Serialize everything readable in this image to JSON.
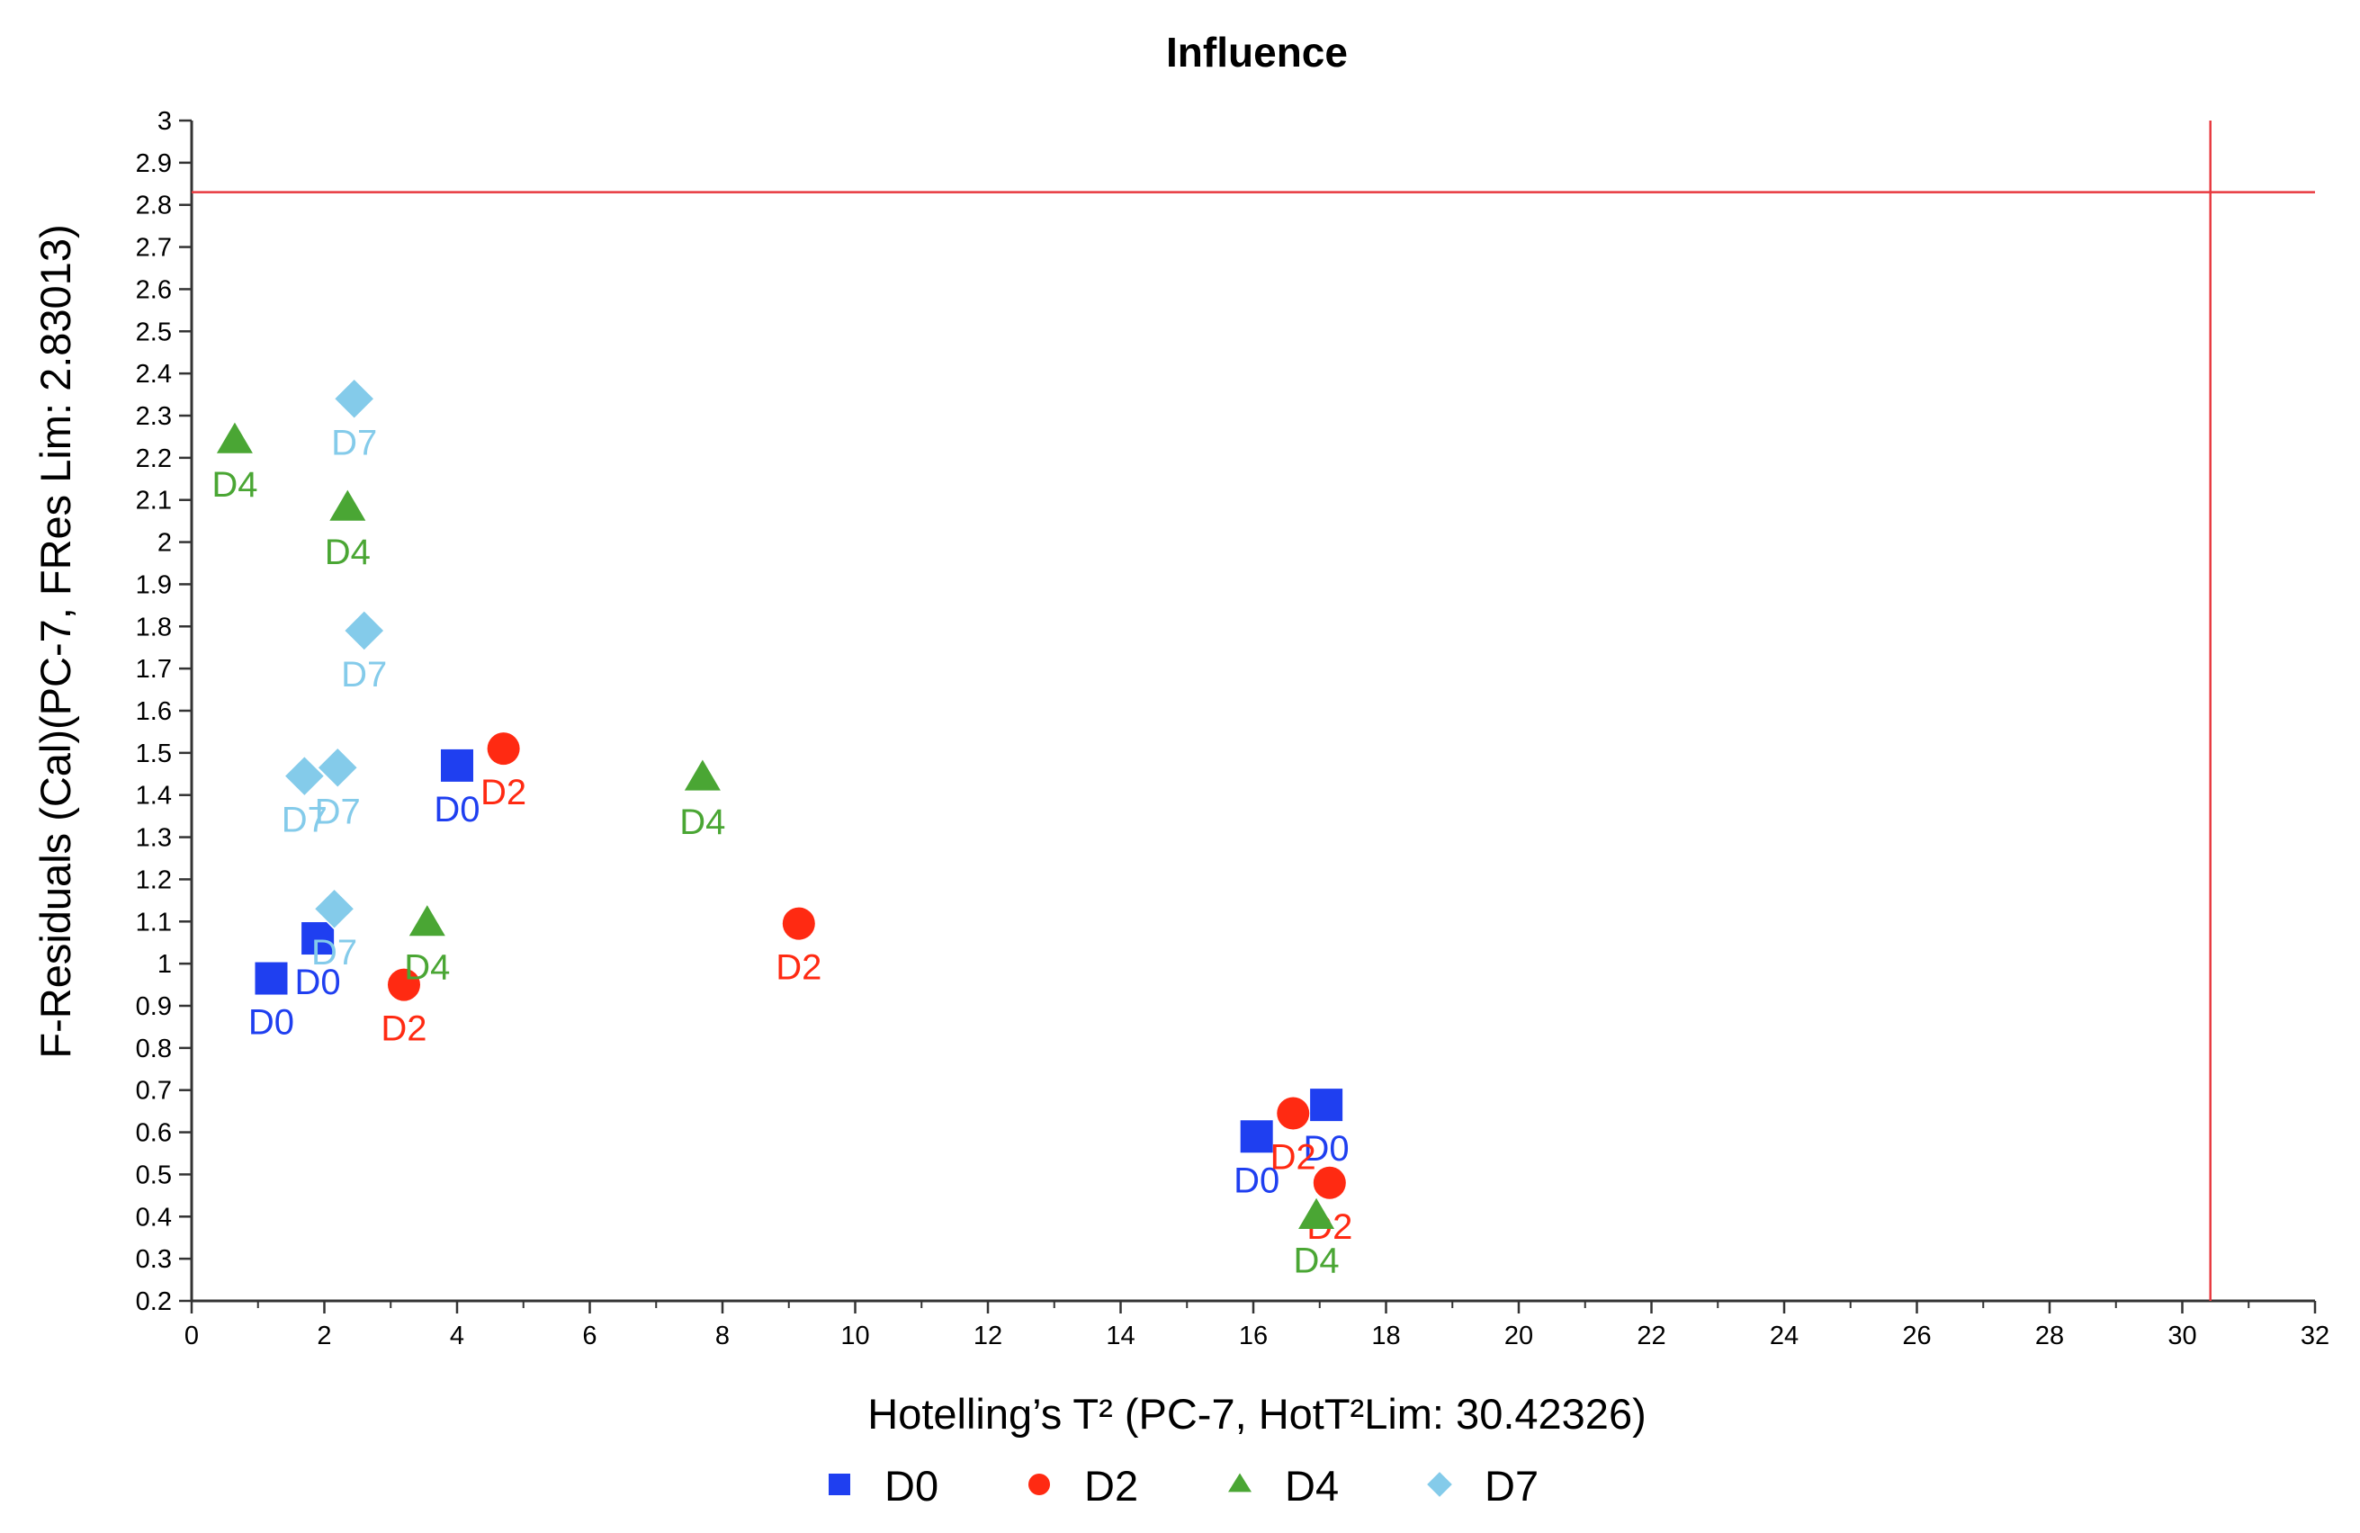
{
  "chart_data": {
    "type": "scatter",
    "title": "Influence",
    "xlabel": "Hotelling’s T² (PC-7, HotT²Lim: 30.42326)",
    "ylabel": "F-Residuals (Cal)(PC-7, FRes Lim: 2.83013)",
    "xlim": [
      0,
      32
    ],
    "ylim": [
      0.2,
      3
    ],
    "x_ticks": [
      0,
      2,
      4,
      6,
      8,
      10,
      12,
      14,
      16,
      18,
      20,
      22,
      24,
      26,
      28,
      30,
      32
    ],
    "y_ticks": [
      "0.2",
      "0.3",
      "0.4",
      "0.5",
      "0.6",
      "0.7",
      "0.8",
      "0.9",
      "1",
      "1.1",
      "1.2",
      "1.3",
      "1.4",
      "1.5",
      "1.6",
      "1.7",
      "1.8",
      "1.9",
      "2",
      "2.1",
      "2.2",
      "2.3",
      "2.4",
      "2.5",
      "2.6",
      "2.7",
      "2.8",
      "2.9",
      "3"
    ],
    "grid": false,
    "legend_position": "bottom",
    "limit_lines": {
      "x": 30.42326,
      "y": 2.83013,
      "color": "#e8393f"
    },
    "series": [
      {
        "name": "D0",
        "marker": "square",
        "color": "#1f3ff0",
        "points": [
          {
            "x": 1.2,
            "y": 0.965,
            "label": "D0"
          },
          {
            "x": 1.9,
            "y": 1.06,
            "label": "D0"
          },
          {
            "x": 4.0,
            "y": 1.47,
            "label": "D0"
          },
          {
            "x": 16.05,
            "y": 0.59,
            "label": "D0"
          },
          {
            "x": 17.1,
            "y": 0.665,
            "label": "D0"
          }
        ]
      },
      {
        "name": "D2",
        "marker": "circle",
        "color": "#ff2a12",
        "points": [
          {
            "x": 4.7,
            "y": 1.51,
            "label": "D2"
          },
          {
            "x": 3.2,
            "y": 0.95,
            "label": "D2"
          },
          {
            "x": 9.15,
            "y": 1.095,
            "label": "D2"
          },
          {
            "x": 16.6,
            "y": 0.645,
            "label": "D2"
          },
          {
            "x": 17.15,
            "y": 0.48,
            "label": "D2"
          }
        ]
      },
      {
        "name": "D4",
        "marker": "triangle",
        "color": "#4aa634",
        "points": [
          {
            "x": 0.65,
            "y": 2.24,
            "label": "D4"
          },
          {
            "x": 2.35,
            "y": 2.08,
            "label": "D4"
          },
          {
            "x": 7.7,
            "y": 1.44,
            "label": "D4"
          },
          {
            "x": 3.55,
            "y": 1.095,
            "label": "D4"
          },
          {
            "x": 16.95,
            "y": 0.4,
            "label": "D4"
          }
        ]
      },
      {
        "name": "D7",
        "marker": "diamond",
        "color": "#84cbea",
        "points": [
          {
            "x": 2.45,
            "y": 2.34,
            "label": "D7"
          },
          {
            "x": 2.6,
            "y": 1.79,
            "label": "D7"
          },
          {
            "x": 1.7,
            "y": 1.445,
            "label": "D7"
          },
          {
            "x": 2.2,
            "y": 1.465,
            "label": "D7"
          },
          {
            "x": 2.15,
            "y": 1.13,
            "label": "D7"
          }
        ]
      }
    ]
  }
}
